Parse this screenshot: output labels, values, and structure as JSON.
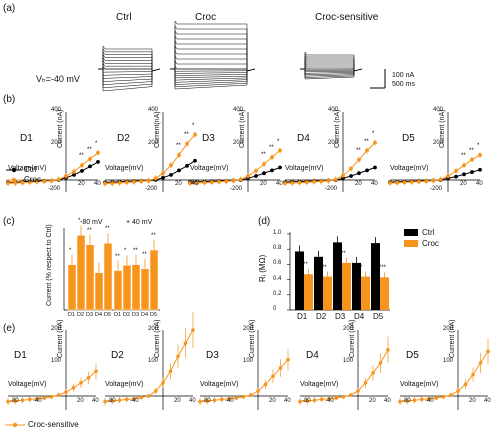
{
  "panels": {
    "a": "(a)",
    "b": "(b)",
    "c": "(c)",
    "d": "(d)",
    "e": "(e)"
  },
  "panel_a": {
    "titles": [
      "Ctrl",
      "Croc",
      "Croc-sensitive"
    ],
    "holding": "Vₕ=-40 mV",
    "scale_current": "100 nA",
    "scale_time": "500 ms"
  },
  "axis": {
    "voltage": "Voltage(mV)",
    "current": "Current (nA)",
    "current_b2": "Current(nA)",
    "b_yticks": [
      "400",
      "200",
      "-200"
    ],
    "b_xticks": [
      "-80",
      "-40",
      "20",
      "40"
    ],
    "e_yticks": [
      "200",
      "100",
      "-50"
    ],
    "e_xticks": [
      "-80",
      "-40",
      "20",
      "40"
    ]
  },
  "day_labels": [
    "D1",
    "D2",
    "D3",
    "D4",
    "D5"
  ],
  "colors": {
    "ctrl": "#000000",
    "croc": "#f7941d",
    "sensitive": "#f7941d"
  },
  "chart_data": [
    {
      "type": "line",
      "panel": "b",
      "xlabel": "Voltage(mV)",
      "ylabel": "Current (nA)",
      "ylim": [
        -200,
        600
      ],
      "legend": [
        "Ctrl",
        "Croc"
      ],
      "x": [
        -80,
        -70,
        -60,
        -50,
        -40,
        -30,
        -20,
        -10,
        0,
        10,
        20,
        30,
        40
      ],
      "days": [
        {
          "label": "D1",
          "series": [
            {
              "name": "Ctrl",
              "values": [
                -40,
                -35,
                -30,
                -25,
                -20,
                -15,
                -10,
                0,
                20,
                45,
                80,
                120,
                160
              ]
            },
            {
              "name": "Croc",
              "values": [
                -55,
                -50,
                -45,
                -38,
                -30,
                -22,
                -12,
                5,
                35,
                75,
                130,
                185,
                240
              ]
            }
          ]
        },
        {
          "label": "D2",
          "series": [
            {
              "name": "Ctrl",
              "values": [
                -40,
                -35,
                -30,
                -25,
                -20,
                -15,
                -10,
                0,
                20,
                45,
                85,
                125,
                170
              ]
            },
            {
              "name": "Croc",
              "values": [
                -60,
                -55,
                -48,
                -40,
                -32,
                -22,
                -10,
                15,
                60,
                130,
                220,
                320,
                400
              ]
            }
          ]
        },
        {
          "label": "D3",
          "series": [
            {
              "name": "Ctrl",
              "values": [
                -35,
                -30,
                -26,
                -22,
                -18,
                -14,
                -8,
                0,
                15,
                35,
                60,
                85,
                110
              ]
            },
            {
              "name": "Croc",
              "values": [
                -55,
                -50,
                -44,
                -38,
                -30,
                -22,
                -12,
                5,
                35,
                80,
                140,
                200,
                260
              ]
            }
          ]
        },
        {
          "label": "D4",
          "series": [
            {
              "name": "Ctrl",
              "values": [
                -35,
                -30,
                -26,
                -22,
                -18,
                -14,
                -8,
                0,
                15,
                35,
                60,
                85,
                110
              ]
            },
            {
              "name": "Croc",
              "values": [
                -55,
                -50,
                -44,
                -38,
                -30,
                -22,
                -12,
                5,
                40,
                100,
                180,
                260,
                330
              ]
            }
          ]
        },
        {
          "label": "D5",
          "series": [
            {
              "name": "Ctrl",
              "values": [
                -35,
                -30,
                -26,
                -22,
                -18,
                -14,
                -8,
                0,
                15,
                30,
                50,
                70,
                90
              ]
            },
            {
              "name": "Croc",
              "values": [
                -50,
                -45,
                -40,
                -34,
                -27,
                -20,
                -10,
                5,
                35,
                80,
                130,
                180,
                220
              ]
            }
          ]
        }
      ]
    },
    {
      "type": "bar",
      "panel": "c",
      "ylabel": "Current (% respect to Ctrl)",
      "ylim": [
        0,
        300
      ],
      "group_titles": [
        "-80 mV",
        "+ 40 mV"
      ],
      "categories": [
        "D1",
        "D2",
        "D3",
        "D4",
        "D5"
      ],
      "groups": [
        {
          "name": "-80 mV",
          "values": [
            170,
            280,
            245,
            140,
            250
          ],
          "significance": [
            "*",
            "*",
            "**",
            "",
            "**"
          ]
        },
        {
          "name": "+ 40 mV",
          "values": [
            148,
            168,
            170,
            155,
            225
          ],
          "significance": [
            "**",
            "*",
            "**",
            "**",
            "**"
          ]
        }
      ]
    },
    {
      "type": "bar",
      "panel": "d",
      "ylabel": "Rᵢ (MΩ)",
      "ylim": [
        0,
        1.0
      ],
      "yticks": [
        "0",
        "0.2",
        "0.4",
        "0.6",
        "0.8",
        "1.0"
      ],
      "categories": [
        "D1",
        "D2",
        "D3",
        "D4",
        "D5"
      ],
      "legend": [
        "Ctrl",
        "Croc"
      ],
      "series": [
        {
          "name": "Ctrl",
          "values": [
            0.77,
            0.7,
            0.89,
            0.62,
            0.88
          ]
        },
        {
          "name": "Croc",
          "values": [
            0.47,
            0.44,
            0.62,
            0.44,
            0.43
          ]
        }
      ],
      "significance": [
        "**",
        "**",
        "**",
        "*",
        "***"
      ]
    },
    {
      "type": "line",
      "panel": "e",
      "xlabel": "Voltage(mV)",
      "ylabel": "Current (nA)",
      "ylim": [
        -50,
        200
      ],
      "legend": [
        "Croc-sensitive"
      ],
      "x": [
        -80,
        -70,
        -60,
        -50,
        -40,
        -30,
        -20,
        -10,
        0,
        10,
        20,
        30,
        40
      ],
      "days": [
        {
          "label": "D1",
          "values": [
            -20,
            -18,
            -15,
            -12,
            -10,
            -7,
            -3,
            3,
            12,
            25,
            40,
            55,
            75
          ]
        },
        {
          "label": "D2",
          "values": [
            -20,
            -18,
            -15,
            -12,
            -10,
            -5,
            0,
            15,
            40,
            75,
            120,
            160,
            200
          ]
        },
        {
          "label": "D3",
          "values": [
            -20,
            -18,
            -15,
            -12,
            -10,
            -7,
            -3,
            3,
            15,
            35,
            60,
            85,
            110
          ]
        },
        {
          "label": "D4",
          "values": [
            -20,
            -18,
            -15,
            -12,
            -10,
            -7,
            -3,
            3,
            15,
            40,
            70,
            100,
            140
          ]
        },
        {
          "label": "D5",
          "values": [
            -20,
            -18,
            -15,
            -12,
            -10,
            -7,
            -3,
            3,
            15,
            35,
            65,
            100,
            135
          ]
        }
      ]
    }
  ]
}
